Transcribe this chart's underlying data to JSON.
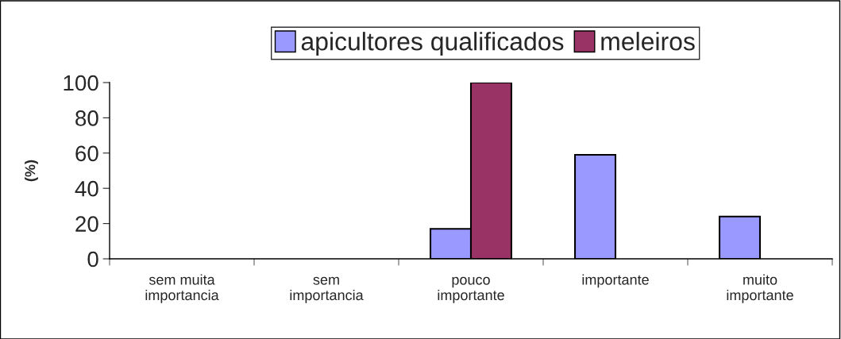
{
  "chart_data": {
    "type": "bar",
    "ylabel": "(%)",
    "categories": [
      "sem muita\nimportancia",
      "sem\nimportancia",
      "pouco\nimportante",
      "importante",
      "muito\nimportante"
    ],
    "series": [
      {
        "name": "apicultores qualificados",
        "color": "#9999ff",
        "values": [
          0,
          0,
          17,
          59,
          24
        ]
      },
      {
        "name": "meleiros",
        "color": "#993366",
        "values": [
          0,
          0,
          100,
          0,
          0
        ]
      }
    ],
    "ylim": [
      0,
      100
    ],
    "yticks": [
      0,
      20,
      40,
      60,
      80,
      100
    ],
    "grid": false,
    "legend": "top"
  }
}
